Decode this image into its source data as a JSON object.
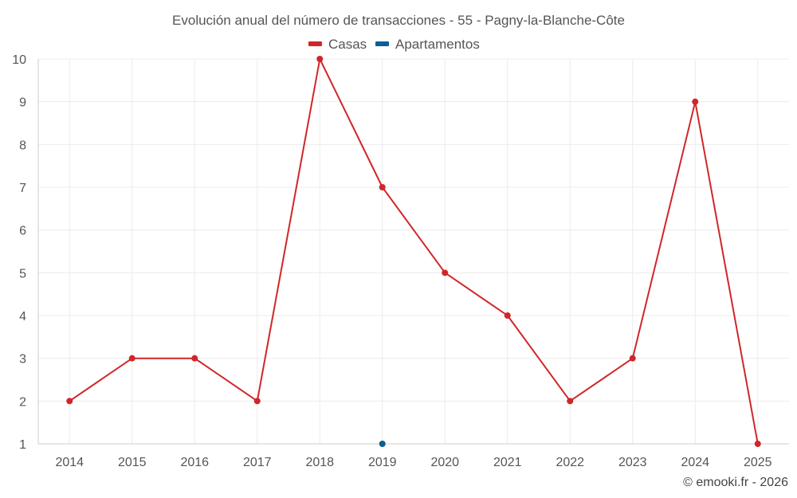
{
  "chart_data": {
    "type": "line",
    "title": "Evolución anual del número de transacciones - 55 - Pagny-la-Blanche-Côte",
    "categories": [
      "2014",
      "2015",
      "2016",
      "2017",
      "2018",
      "2019",
      "2020",
      "2021",
      "2022",
      "2023",
      "2024",
      "2025"
    ],
    "series": [
      {
        "name": "Casas",
        "color": "#d0262a",
        "values": [
          2,
          3,
          3,
          2,
          10,
          7,
          5,
          4,
          2,
          3,
          9,
          1
        ]
      },
      {
        "name": "Apartamentos",
        "color": "#0a5f96",
        "values": [
          null,
          null,
          null,
          null,
          null,
          1,
          null,
          null,
          null,
          null,
          null,
          null
        ]
      }
    ],
    "ylim": [
      1,
      10
    ],
    "yticks": [
      "1",
      "2",
      "3",
      "4",
      "5",
      "6",
      "7",
      "8",
      "9",
      "10"
    ],
    "xlabel": "",
    "ylabel": "",
    "grid": true,
    "legend_position": "top-center"
  },
  "credit": "© emooki.fr - 2026"
}
